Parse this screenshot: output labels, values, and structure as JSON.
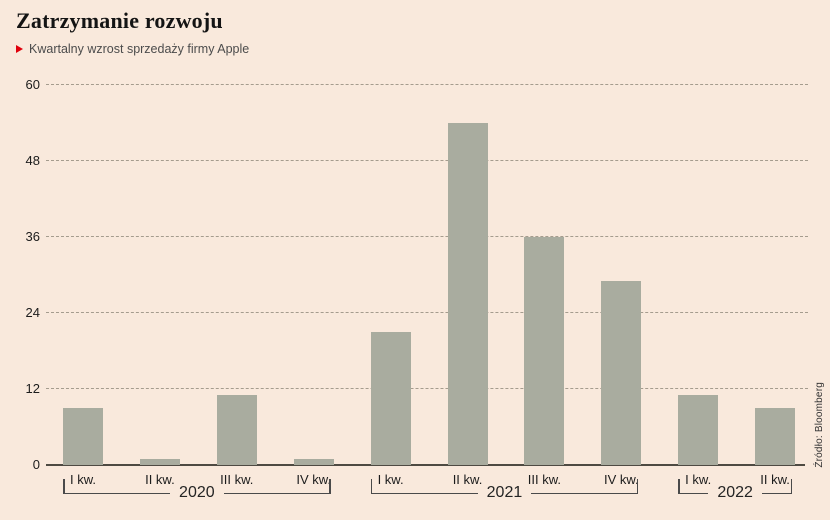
{
  "header": {
    "title": "Zatrzymanie rozwoju",
    "subtitle": "Kwartalny wzrost sprzedaży firmy Apple",
    "marker_color": "#e0000c"
  },
  "source": "Źródło: Bloomberg",
  "chart_data": {
    "type": "bar",
    "title": "Zatrzymanie rozwoju",
    "subtitle": "Kwartalny wzrost sprzedaży firmy Apple",
    "categories": [
      "I kw.",
      "II kw.",
      "III kw.",
      "IV kw.",
      "I kw.",
      "II kw.",
      "III kw.",
      "IV kw.",
      "I kw.",
      "II kw."
    ],
    "values": [
      9,
      1,
      11,
      1,
      21,
      54,
      36,
      29,
      11,
      9
    ],
    "groups": [
      {
        "year": "2020",
        "quarters": [
          "I kw.",
          "II kw.",
          "III kw.",
          "IV kw."
        ],
        "values": [
          9,
          1,
          11,
          1
        ]
      },
      {
        "year": "2021",
        "quarters": [
          "I kw.",
          "II kw.",
          "III kw.",
          "IV kw."
        ],
        "values": [
          21,
          54,
          36,
          29
        ]
      },
      {
        "year": "2022",
        "quarters": [
          "I kw.",
          "II kw."
        ],
        "values": [
          11,
          9
        ]
      }
    ],
    "y_ticks": [
      0,
      12,
      24,
      36,
      48,
      60
    ],
    "ylim": [
      0,
      60
    ],
    "xlabel": "",
    "ylabel": "",
    "grid": "horizontal-dashed",
    "legend": "none",
    "bar_color": "#a9ac9f",
    "background_color": "#f9e9dc",
    "source": "Źródło: Bloomberg"
  }
}
